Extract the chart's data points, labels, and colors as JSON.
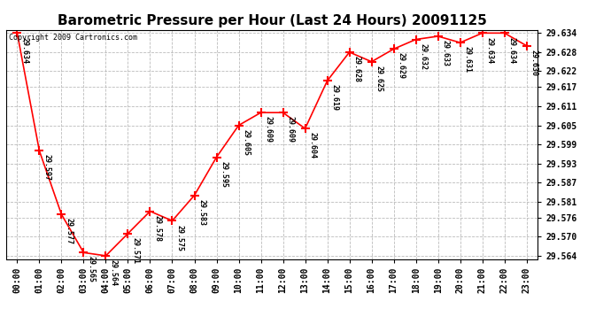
{
  "title": "Barometric Pressure per Hour (Last 24 Hours) 20091125",
  "copyright": "Copyright 2009 Cartronics.com",
  "hours": [
    "00:00",
    "01:00",
    "02:00",
    "03:00",
    "04:00",
    "05:00",
    "06:00",
    "07:00",
    "08:00",
    "09:00",
    "10:00",
    "11:00",
    "12:00",
    "13:00",
    "14:00",
    "15:00",
    "16:00",
    "17:00",
    "18:00",
    "19:00",
    "20:00",
    "21:00",
    "22:00",
    "23:00"
  ],
  "values": [
    29.634,
    29.597,
    29.577,
    29.565,
    29.564,
    29.571,
    29.578,
    29.575,
    29.583,
    29.595,
    29.605,
    29.609,
    29.609,
    29.604,
    29.619,
    29.628,
    29.625,
    29.629,
    29.632,
    29.633,
    29.631,
    29.634,
    29.634,
    29.63
  ],
  "ylim_min": 29.564,
  "ylim_max": 29.634,
  "yticks": [
    29.564,
    29.57,
    29.576,
    29.581,
    29.587,
    29.593,
    29.599,
    29.605,
    29.611,
    29.617,
    29.622,
    29.628,
    29.634
  ],
  "line_color": "red",
  "marker_color": "red",
  "marker": "+",
  "bg_color": "white",
  "grid_color": "#bbbbbb",
  "title_fontsize": 11,
  "fig_width": 6.9,
  "fig_height": 3.75,
  "dpi": 100
}
